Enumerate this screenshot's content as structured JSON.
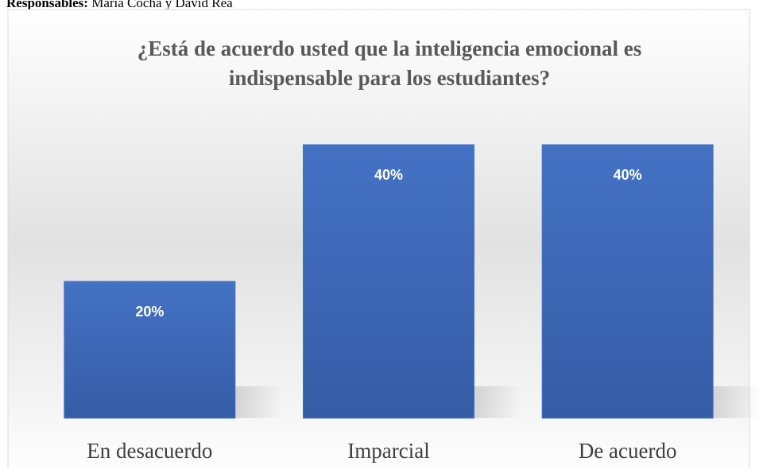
{
  "caption": {
    "label": "Responsables:",
    "text": "María Cocha y David Rea"
  },
  "chart_data": {
    "type": "bar",
    "title": [
      "¿Está de acuerdo usted que la inteligencia emocional es",
      "indispensable para los estudiantes?"
    ],
    "categories": [
      "En desacuerdo",
      "Imparcial",
      "De acuerdo"
    ],
    "values": [
      20,
      40,
      40
    ],
    "value_labels": [
      "20%",
      "40%",
      "40%"
    ],
    "color": "#4472c4"
  }
}
